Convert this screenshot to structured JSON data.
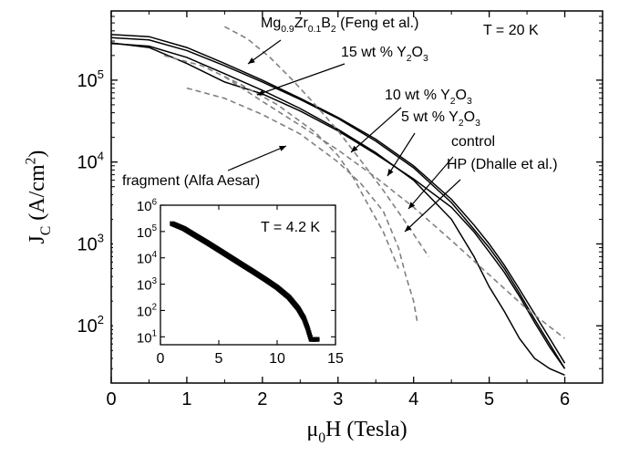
{
  "chart_data": {
    "type": "line",
    "xlabel": "μ0H (Tesla)",
    "ylabel": "JC (A/cm2)",
    "xlim": [
      0,
      6.5
    ],
    "ylim": [
      20,
      700000
    ],
    "yscale": "log",
    "x_ticks": [
      "0",
      "1",
      "2",
      "3",
      "4",
      "5",
      "6"
    ],
    "y_ticks": [
      "10^2",
      "10^3",
      "10^4",
      "10^5"
    ],
    "grid": false,
    "temperature_label": "T = 20 K",
    "series": [
      {
        "label": "control",
        "style": "solid",
        "color": "#000000",
        "points": [
          [
            0,
            280000
          ],
          [
            0.5,
            260000
          ],
          [
            1,
            190000
          ],
          [
            1.5,
            120000
          ],
          [
            2,
            75000
          ],
          [
            2.5,
            45000
          ],
          [
            3,
            25000
          ],
          [
            3.5,
            13000
          ],
          [
            4,
            6000
          ],
          [
            4.5,
            2000
          ],
          [
            4.8,
            700
          ],
          [
            5,
            300
          ],
          [
            5.2,
            150
          ],
          [
            5.4,
            70
          ],
          [
            5.6,
            40
          ],
          [
            5.8,
            30
          ],
          [
            6,
            25
          ]
        ]
      },
      {
        "label": "5 wt % Y2O3",
        "style": "solid",
        "color": "#000000",
        "points": [
          [
            0,
            330000
          ],
          [
            0.5,
            310000
          ],
          [
            1,
            230000
          ],
          [
            1.5,
            150000
          ],
          [
            2,
            95000
          ],
          [
            2.5,
            58000
          ],
          [
            3,
            34000
          ],
          [
            3.5,
            18000
          ],
          [
            4,
            8500
          ],
          [
            4.5,
            3200
          ],
          [
            4.8,
            1500
          ],
          [
            5,
            900
          ],
          [
            5.2,
            500
          ],
          [
            5.4,
            250
          ],
          [
            5.6,
            120
          ],
          [
            5.8,
            60
          ],
          [
            6,
            30
          ]
        ]
      },
      {
        "label": "10 wt % Y2O3",
        "style": "solid",
        "color": "#000000",
        "points": [
          [
            0,
            285000
          ],
          [
            0.5,
            250000
          ],
          [
            1,
            160000
          ],
          [
            1.5,
            95000
          ],
          [
            2,
            68000
          ],
          [
            2.5,
            42000
          ],
          [
            3,
            24000
          ],
          [
            3.5,
            12500
          ],
          [
            4,
            6200
          ],
          [
            4.5,
            2800
          ],
          [
            4.8,
            1400
          ],
          [
            5,
            800
          ],
          [
            5.2,
            450
          ],
          [
            5.4,
            230
          ],
          [
            5.6,
            110
          ],
          [
            5.8,
            55
          ],
          [
            6,
            30
          ]
        ]
      },
      {
        "label": "15 wt % Y2O3",
        "style": "solid",
        "color": "#000000",
        "points": [
          [
            0,
            360000
          ],
          [
            0.5,
            340000
          ],
          [
            1,
            250000
          ],
          [
            1.5,
            160000
          ],
          [
            2,
            100000
          ],
          [
            2.5,
            60000
          ],
          [
            3,
            35000
          ],
          [
            3.5,
            19000
          ],
          [
            4,
            9000
          ],
          [
            4.5,
            3500
          ],
          [
            4.8,
            1700
          ],
          [
            5,
            1000
          ],
          [
            5.2,
            550
          ],
          [
            5.4,
            280
          ],
          [
            5.6,
            140
          ],
          [
            5.8,
            70
          ],
          [
            6,
            35
          ]
        ]
      },
      {
        "label": "Mg0.9Zr0.1B2 (Feng et al.)",
        "style": "dashed",
        "color": "#808080",
        "points": [
          [
            1.5,
            450000
          ],
          [
            1.8,
            320000
          ],
          [
            2.1,
            190000
          ],
          [
            2.4,
            100000
          ],
          [
            2.7,
            50000
          ],
          [
            3,
            24000
          ],
          [
            3.3,
            10500
          ],
          [
            3.6,
            4500
          ],
          [
            3.9,
            1800
          ],
          [
            4.2,
            700
          ]
        ]
      },
      {
        "label": "fragment (Alfa Aesar)",
        "style": "dashed",
        "color": "#808080",
        "points": [
          [
            1,
            80000
          ],
          [
            1.5,
            60000
          ],
          [
            2,
            38000
          ],
          [
            2.5,
            22000
          ],
          [
            3,
            10000
          ],
          [
            3.3,
            5500
          ],
          [
            3.6,
            2500
          ],
          [
            3.8,
            900
          ],
          [
            3.9,
            400
          ],
          [
            4,
            200
          ],
          [
            4.05,
            110
          ]
        ]
      },
      {
        "label": "HP (Dhalle et al.)",
        "style": "dashed",
        "color": "#808080",
        "points": [
          [
            1.5,
            110000
          ],
          [
            2,
            55000
          ],
          [
            2.5,
            28000
          ],
          [
            3,
            14000
          ],
          [
            3.5,
            6500
          ],
          [
            4,
            2800
          ],
          [
            4.5,
            1100
          ],
          [
            5,
            420
          ],
          [
            5.5,
            160
          ],
          [
            6,
            70
          ]
        ]
      },
      {
        "label": "",
        "style": "dashed",
        "color": "#808080",
        "points": [
          [
            0.7,
            200000
          ],
          [
            1.2,
            150000
          ],
          [
            1.7,
            90000
          ],
          [
            2.2,
            50000
          ],
          [
            2.7,
            23000
          ],
          [
            3,
            12000
          ],
          [
            3.2,
            6500
          ],
          [
            3.4,
            3000
          ],
          [
            3.6,
            1400
          ],
          [
            3.8,
            500
          ]
        ]
      }
    ],
    "annotations": [
      "Mg0.9Zr0.1B2 (Feng et al.)",
      "15 wt % Y2O3",
      "10 wt % Y2O3",
      "5 wt % Y2O3",
      "control",
      "HP (Dhalle et al.)",
      "fragment (Alfa Aesar)"
    ],
    "inset": {
      "type": "scatter",
      "temperature_label": "T = 4.2 K",
      "xlim": [
        0,
        15
      ],
      "ylim": [
        5,
        1000000
      ],
      "yscale": "log",
      "x_ticks": [
        "0",
        "5",
        "10",
        "15"
      ],
      "y_ticks": [
        "10^1",
        "10^2",
        "10^3",
        "10^4",
        "10^5",
        "10^6"
      ],
      "points": [
        [
          1,
          200000
        ],
        [
          2,
          130000
        ],
        [
          3,
          70000
        ],
        [
          4,
          38000
        ],
        [
          5,
          20000
        ],
        [
          6,
          10500
        ],
        [
          7,
          5500
        ],
        [
          8,
          2900
        ],
        [
          9,
          1500
        ],
        [
          10,
          750
        ],
        [
          11,
          320
        ],
        [
          11.8,
          120
        ],
        [
          12.3,
          50
        ],
        [
          12.6,
          22
        ],
        [
          12.9,
          8
        ],
        [
          13.5,
          8
        ]
      ]
    }
  }
}
